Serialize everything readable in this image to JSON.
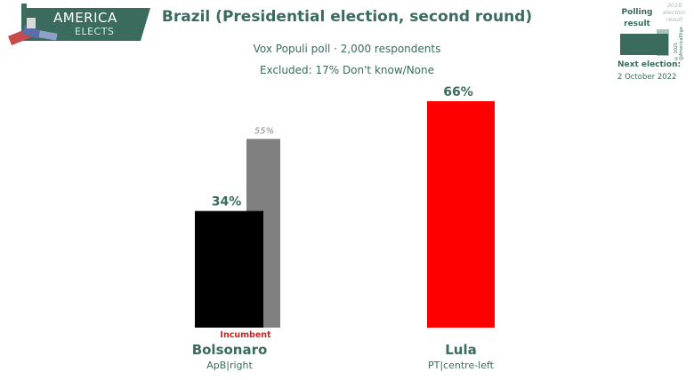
{
  "brand": {
    "line1": "AMERICA",
    "line2": "ELECTS"
  },
  "title": "Brazil (Presidential election, second round)",
  "subtitle": "Vox Populi poll · 2,000 respondents",
  "excluded": "Excluded: 17% Don't know/None",
  "legend": {
    "polling": "Polling result",
    "previous": "2018 election result",
    "copyright": "© 2021 @AmericaElige",
    "next_label": "Next election:",
    "next_date": "2 October 2022",
    "colors": {
      "polling": "#3a6b5e",
      "previous": "#a9c4bd"
    }
  },
  "incumbent_label": "Incumbent",
  "chart_data": {
    "type": "bar",
    "categories": [
      "Bolsonaro",
      "Lula"
    ],
    "parties": [
      "ApB|right",
      "PT|centre-left"
    ],
    "series": [
      {
        "name": "Polling result",
        "values": [
          34,
          66
        ],
        "labels": [
          "34%",
          "66%"
        ],
        "colors": [
          "#000000",
          "#ff0000"
        ]
      },
      {
        "name": "2018 election result",
        "values": [
          55,
          null
        ],
        "labels": [
          "55%",
          ""
        ],
        "colors": [
          "#808080",
          null
        ]
      }
    ],
    "ylim": [
      0,
      66
    ],
    "grid": false
  }
}
